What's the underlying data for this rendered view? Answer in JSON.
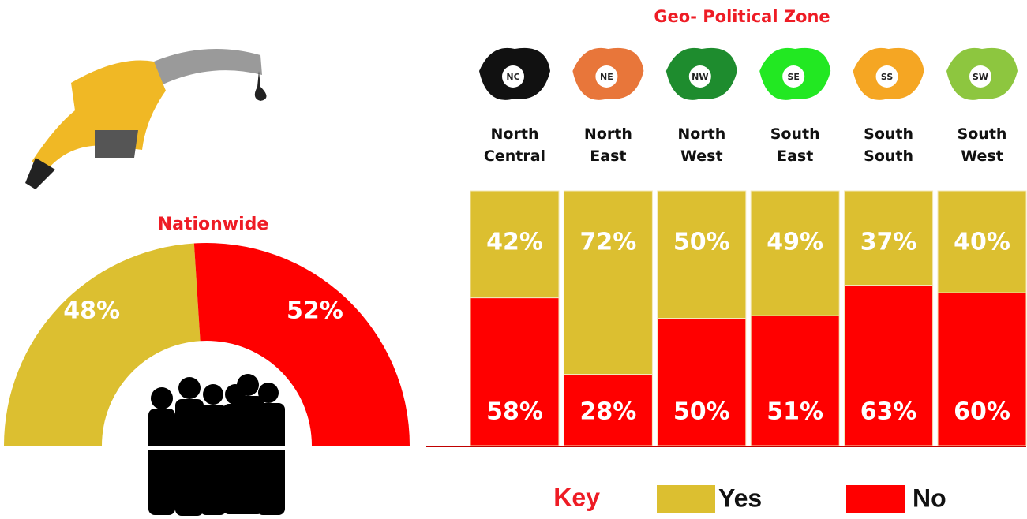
{
  "chart_data": [
    {
      "type": "half-donut",
      "title": "Nationwide",
      "values": [
        48,
        52
      ],
      "value_labels": [
        "48%",
        "52%"
      ],
      "colors": [
        "#dcbf30",
        "#ff0000"
      ]
    },
    {
      "type": "stacked-bar",
      "title": "Geo- Political Zone",
      "categories": [
        "North Central",
        "North East",
        "North West",
        "South East",
        "South South",
        "South West"
      ],
      "zone_codes": [
        "NC",
        "NE",
        "NW",
        "SE",
        "SS",
        "SW"
      ],
      "ylim": [
        0,
        100
      ],
      "legend_title": "Key",
      "series": [
        {
          "name": "Yes",
          "color": "#dcbf30",
          "values": [
            42,
            72,
            50,
            49,
            37,
            40
          ],
          "value_labels": [
            "42%",
            "72%",
            "50%",
            "49%",
            "37%",
            "40%"
          ]
        },
        {
          "name": "No",
          "color": "#ff0000",
          "values": [
            58,
            28,
            50,
            51,
            63,
            60
          ],
          "value_labels": [
            "58%",
            "28%",
            "50%",
            "51%",
            "63%",
            "60%"
          ]
        }
      ]
    }
  ]
}
